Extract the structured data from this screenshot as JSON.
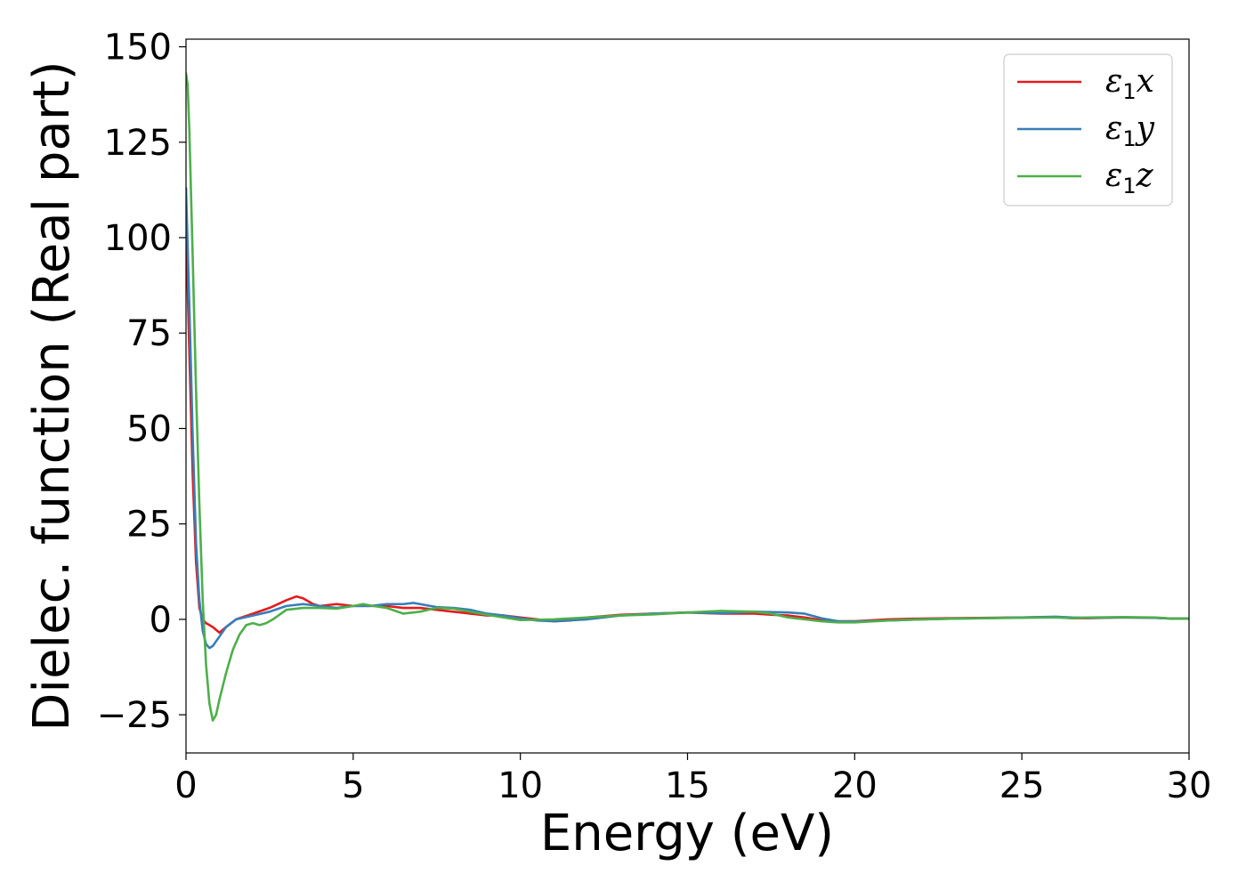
{
  "chart_data": {
    "type": "line",
    "title": "",
    "xlabel": "Energy (eV)",
    "ylabel": "Dielec. function (Real part)",
    "xlim": [
      0,
      30
    ],
    "ylim": [
      -35,
      152
    ],
    "xticks": [
      0,
      5,
      10,
      15,
      20,
      25,
      30
    ],
    "yticks": [
      -25,
      0,
      25,
      50,
      75,
      100,
      125,
      150
    ],
    "xtick_labels": [
      "0",
      "5",
      "10",
      "15",
      "20",
      "25",
      "30"
    ],
    "ytick_labels": [
      "−25",
      "0",
      "25",
      "50",
      "75",
      "100",
      "125",
      "150"
    ],
    "grid": false,
    "legend_position": "top-right",
    "series": [
      {
        "name": "ε1x",
        "legend_base": "ε",
        "legend_sub": "1",
        "legend_tail": "x",
        "color": "#e41a1c",
        "x": [
          0,
          0.1,
          0.2,
          0.3,
          0.4,
          0.5,
          0.6,
          0.8,
          1.0,
          1.2,
          1.5,
          2.0,
          2.5,
          3.0,
          3.3,
          3.5,
          3.8,
          4.0,
          4.5,
          5.0,
          5.5,
          6.0,
          6.5,
          7.0,
          7.5,
          8.0,
          8.5,
          9.0,
          9.5,
          10.0,
          10.5,
          11.0,
          11.5,
          12.0,
          13.0,
          14.0,
          15.0,
          16.0,
          17.0,
          17.5,
          18.0,
          18.5,
          19.0,
          19.5,
          20.0,
          21.0,
          22.0,
          23.0,
          24.0,
          25.0,
          26.0,
          26.5,
          27.0,
          28.0,
          29.0,
          29.5,
          30.0
        ],
        "y": [
          103,
          70,
          38,
          15,
          3,
          0,
          -1,
          -2,
          -3.5,
          -2,
          0,
          1.5,
          3,
          5,
          6,
          5.5,
          4,
          3.5,
          4,
          3.5,
          3.5,
          3.5,
          3,
          3,
          2.5,
          2,
          1.5,
          1,
          1,
          0.5,
          0,
          -0.5,
          -0.3,
          0.5,
          1.2,
          1.5,
          1.8,
          1.5,
          1.5,
          1.2,
          1,
          0.5,
          -0.2,
          -0.5,
          -0.5,
          0,
          0.2,
          0.3,
          0.4,
          0.5,
          0.6,
          0.3,
          0.3,
          0.5,
          0.4,
          0.2,
          0.2
        ]
      },
      {
        "name": "ε1y",
        "legend_base": "ε",
        "legend_sub": "1",
        "legend_tail": "y",
        "color": "#377eb8",
        "x": [
          0,
          0.1,
          0.2,
          0.3,
          0.4,
          0.5,
          0.6,
          0.7,
          0.8,
          1.0,
          1.2,
          1.5,
          2.0,
          2.5,
          3.0,
          3.5,
          4.0,
          4.5,
          5.0,
          5.5,
          6.0,
          6.5,
          6.8,
          7.0,
          7.5,
          8.0,
          8.5,
          9.0,
          9.5,
          10.0,
          10.5,
          11.0,
          12.0,
          13.0,
          14.0,
          15.0,
          16.0,
          17.0,
          18.0,
          18.5,
          19.0,
          19.5,
          20.0,
          21.0,
          22.0,
          23.0,
          24.0,
          25.0,
          26.0,
          26.5,
          27.0,
          28.0,
          29.0,
          29.5,
          30.0
        ],
        "y": [
          113,
          82,
          48,
          20,
          5,
          -3,
          -6.5,
          -7.5,
          -7,
          -4.5,
          -2,
          0,
          1,
          2,
          3.5,
          4,
          3.5,
          3,
          3.5,
          3.5,
          4,
          4,
          4.3,
          4,
          3.2,
          3,
          2.5,
          1.5,
          1,
          0.3,
          -0.3,
          -0.5,
          0,
          1,
          1.5,
          1.8,
          1.6,
          2,
          1.8,
          1.5,
          0.3,
          -0.5,
          -0.6,
          -0.3,
          0,
          0.2,
          0.3,
          0.5,
          0.7,
          0.5,
          0.4,
          0.5,
          0.4,
          0.2,
          0.2
        ]
      },
      {
        "name": "ε1z",
        "legend_base": "ε",
        "legend_sub": "1",
        "legend_tail": "z",
        "color": "#4daf4a",
        "x": [
          0,
          0.05,
          0.1,
          0.2,
          0.3,
          0.4,
          0.5,
          0.6,
          0.7,
          0.8,
          0.9,
          1.0,
          1.2,
          1.4,
          1.6,
          1.8,
          2.0,
          2.2,
          2.4,
          2.6,
          3.0,
          3.5,
          4.0,
          4.5,
          5.0,
          5.3,
          5.6,
          6.0,
          6.5,
          7.0,
          7.5,
          8.0,
          8.5,
          9.0,
          9.5,
          10.0,
          11.0,
          12.0,
          13.0,
          14.0,
          15.0,
          16.0,
          17.0,
          17.5,
          18.0,
          18.5,
          19.0,
          19.5,
          20.0,
          21.0,
          22.0,
          23.0,
          24.0,
          25.0,
          26.0,
          26.5,
          27.0,
          28.0,
          29.0,
          29.5,
          30.0
        ],
        "y": [
          143,
          140,
          128,
          95,
          60,
          30,
          5,
          -12,
          -22,
          -26.5,
          -25,
          -21,
          -14,
          -8,
          -4,
          -1.5,
          -1,
          -1.5,
          -1,
          0,
          2.5,
          3,
          3,
          2.8,
          3.5,
          4,
          3.5,
          3,
          1.5,
          2,
          3,
          2.8,
          2,
          1.2,
          0.5,
          -0.2,
          0,
          0.5,
          1,
          1.3,
          1.8,
          2.2,
          2,
          1.5,
          0.5,
          0,
          -0.5,
          -0.8,
          -0.8,
          -0.3,
          0,
          0.2,
          0.3,
          0.4,
          0.5,
          0.3,
          0.5,
          0.6,
          0.5,
          0.2,
          0.2
        ]
      }
    ]
  }
}
